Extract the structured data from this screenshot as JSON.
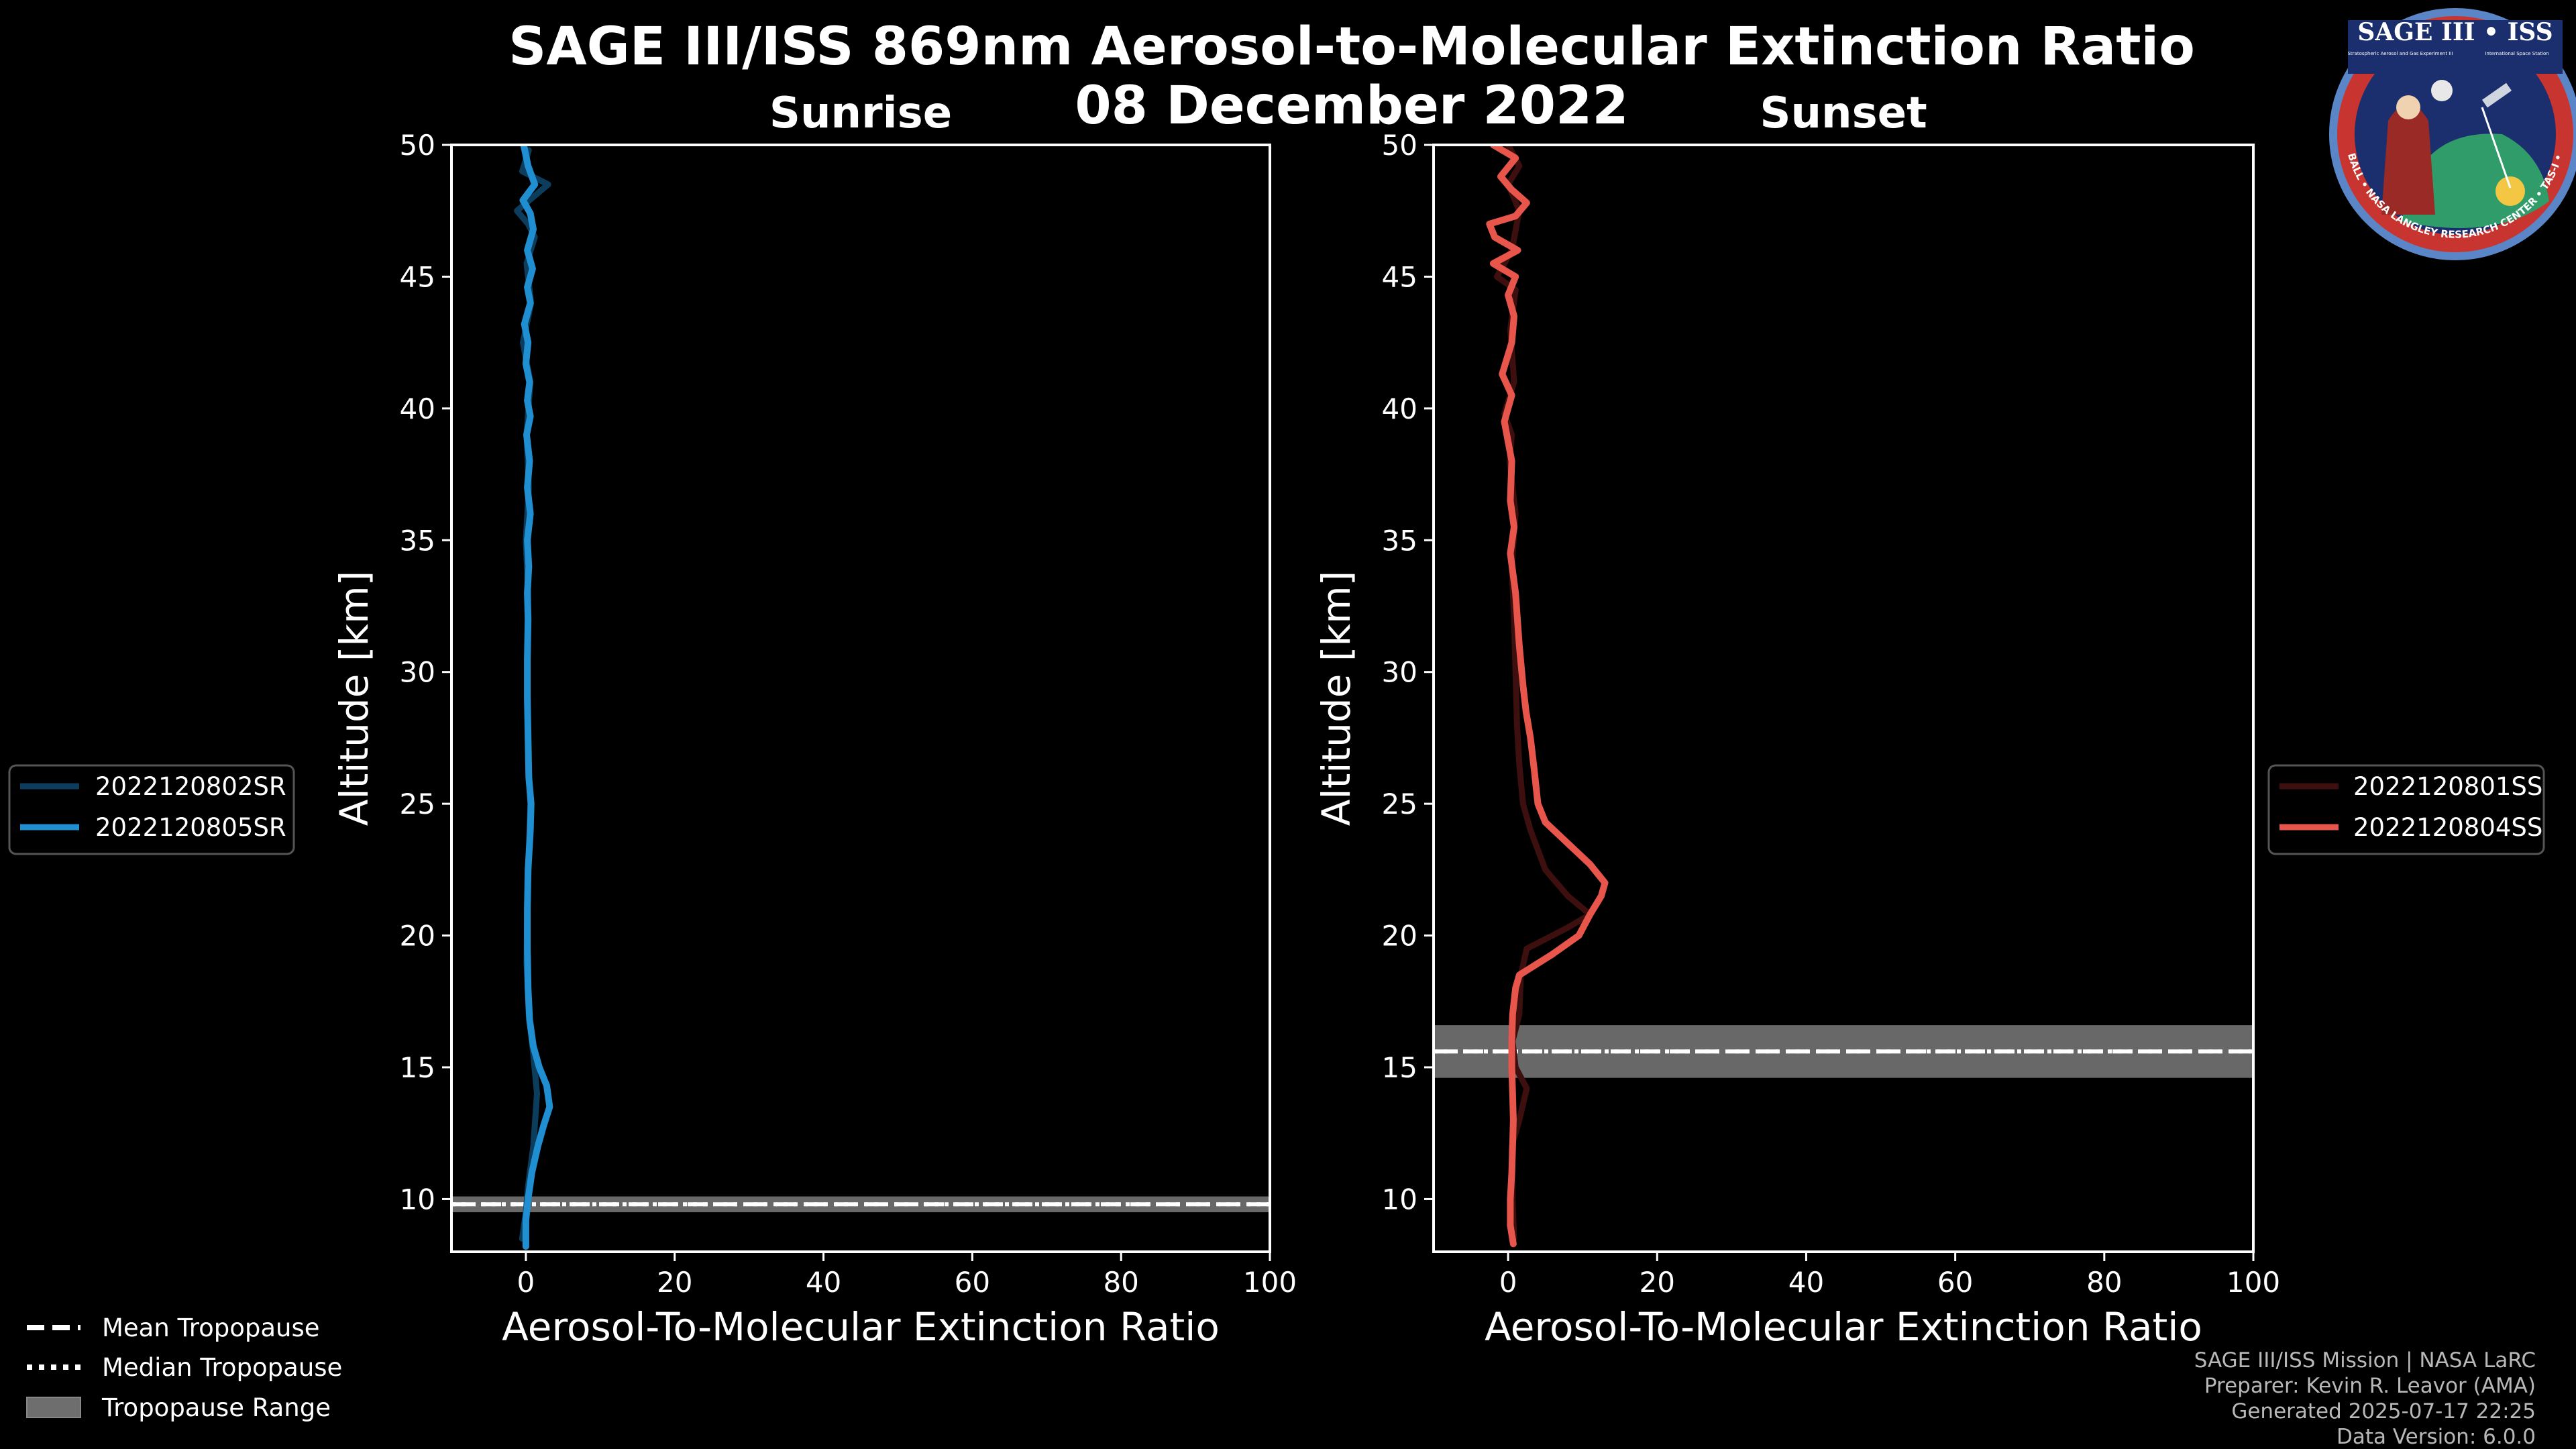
{
  "figure": {
    "title_line1": "SAGE III/ISS 869nm Aerosol-to-Molecular Extinction Ratio",
    "title_line2": "08 December 2022",
    "credits": [
      "SAGE III/ISS Mission | NASA LaRC",
      "Preparer: Kevin R. Leavor (AMA)",
      "Generated 2025-07-17 22:25",
      "Data Version: 6.0.0"
    ],
    "logo": {
      "title": "SAGE III • ISS",
      "sub_left": "Stratospheric Aerosol and Gas Experiment III",
      "sub_right": "International Space Station",
      "ring": "BALL • NASA LANGLEY RESEARCH CENTER • TAS-I • ESA"
    },
    "tropopause_legend": [
      {
        "label": "Mean Tropopause",
        "style": "dashed"
      },
      {
        "label": "Median Tropopause",
        "style": "dotted"
      },
      {
        "label": "Tropopause Range",
        "style": "band"
      }
    ],
    "colors": {
      "background": "#000000",
      "sunrise_faint": "#0d3d5c",
      "sunrise": "#1f8fd1",
      "sunset_faint": "#3d0f0f",
      "sunset": "#e8564b",
      "band": "#6e6e6e"
    }
  },
  "chart_data": [
    {
      "type": "line",
      "subtitle": "Sunrise",
      "xlabel": "Aerosol-To-Molecular Extinction Ratio",
      "ylabel": "Altitude [km]",
      "xlim": [
        -10,
        100
      ],
      "ylim": [
        8,
        50
      ],
      "xticks": [
        0,
        20,
        40,
        60,
        80,
        100
      ],
      "yticks": [
        10,
        15,
        20,
        25,
        30,
        35,
        40,
        45,
        50
      ],
      "tropopause": {
        "mean": 9.8,
        "median": 9.8,
        "range": [
          9.5,
          10.1
        ]
      },
      "series": [
        {
          "name": "2022120802SR",
          "faint": true,
          "points": [
            [
              -0.5,
              8.5
            ],
            [
              0,
              9.5
            ],
            [
              0.3,
              10.5
            ],
            [
              1,
              12
            ],
            [
              1.5,
              14
            ],
            [
              1,
              15.5
            ],
            [
              0.4,
              17
            ],
            [
              0.1,
              19
            ],
            [
              0.2,
              21
            ],
            [
              0.4,
              23
            ],
            [
              0.6,
              25
            ],
            [
              0.3,
              27
            ],
            [
              0.2,
              30
            ],
            [
              0.3,
              33
            ],
            [
              0,
              35
            ],
            [
              0.4,
              37
            ],
            [
              0.1,
              39
            ],
            [
              0.6,
              41
            ],
            [
              -0.4,
              42.5
            ],
            [
              0.7,
              44
            ],
            [
              0.1,
              45.5
            ],
            [
              1.2,
              46.5
            ],
            [
              0.3,
              47
            ],
            [
              -1.2,
              47.5
            ],
            [
              3,
              48.5
            ],
            [
              -0.5,
              49
            ],
            [
              0.4,
              49.8
            ]
          ]
        },
        {
          "name": "2022120805SR",
          "faint": false,
          "points": [
            [
              0,
              8.2
            ],
            [
              0,
              9.2
            ],
            [
              0.3,
              10
            ],
            [
              0.8,
              11
            ],
            [
              1.6,
              12
            ],
            [
              2.4,
              12.8
            ],
            [
              3.2,
              13.5
            ],
            [
              2.8,
              14.3
            ],
            [
              1.8,
              15
            ],
            [
              1,
              15.8
            ],
            [
              0.5,
              16.8
            ],
            [
              0.3,
              18
            ],
            [
              0.2,
              19.5
            ],
            [
              0.2,
              21
            ],
            [
              0.3,
              22.5
            ],
            [
              0.6,
              24
            ],
            [
              0.7,
              25
            ],
            [
              0.4,
              26
            ],
            [
              0.3,
              27.5
            ],
            [
              0.2,
              29
            ],
            [
              0.2,
              30.5
            ],
            [
              0.3,
              32
            ],
            [
              0.2,
              33
            ],
            [
              0.4,
              34
            ],
            [
              0.2,
              35
            ],
            [
              0.6,
              36
            ],
            [
              0.2,
              37
            ],
            [
              0.5,
              38
            ],
            [
              0.1,
              39
            ],
            [
              0.6,
              39.7
            ],
            [
              0.2,
              40.3
            ],
            [
              0.5,
              41
            ],
            [
              0,
              41.7
            ],
            [
              0.3,
              42.5
            ],
            [
              -0.2,
              43.2
            ],
            [
              0.6,
              44
            ],
            [
              0.2,
              44.6
            ],
            [
              0.9,
              45.3
            ],
            [
              0.2,
              46
            ],
            [
              1,
              46.8
            ],
            [
              0.6,
              47.4
            ],
            [
              -0.4,
              47.9
            ],
            [
              1.2,
              48.5
            ],
            [
              0.3,
              49.2
            ],
            [
              -0.3,
              50
            ]
          ]
        }
      ]
    },
    {
      "type": "line",
      "subtitle": "Sunset",
      "xlabel": "Aerosol-To-Molecular Extinction Ratio",
      "ylabel": "Altitude [km]",
      "xlim": [
        -10,
        100
      ],
      "ylim": [
        8,
        50
      ],
      "xticks": [
        0,
        20,
        40,
        60,
        80,
        100
      ],
      "yticks": [
        10,
        15,
        20,
        25,
        30,
        35,
        40,
        45,
        50
      ],
      "tropopause": {
        "mean": 15.6,
        "median": 15.6,
        "range": [
          14.6,
          16.6
        ]
      },
      "series": [
        {
          "name": "2022120801SS",
          "faint": true,
          "points": [
            [
              0.8,
              8.5
            ],
            [
              0.6,
              10
            ],
            [
              0.5,
              12
            ],
            [
              1.5,
              13
            ],
            [
              2.5,
              14.2
            ],
            [
              1,
              15
            ],
            [
              0.6,
              16
            ],
            [
              1.5,
              17
            ],
            [
              1.7,
              18.5
            ],
            [
              2.5,
              19.5
            ],
            [
              8,
              20.3
            ],
            [
              11,
              20.8
            ],
            [
              8,
              21.5
            ],
            [
              5,
              22.5
            ],
            [
              3,
              24
            ],
            [
              2,
              25
            ],
            [
              1.5,
              26.5
            ],
            [
              1.2,
              28
            ],
            [
              1,
              30
            ],
            [
              0.8,
              32
            ],
            [
              0.5,
              34
            ],
            [
              1,
              36
            ],
            [
              0.2,
              38
            ],
            [
              0.5,
              39
            ],
            [
              -0.5,
              39.8
            ],
            [
              0.8,
              41
            ],
            [
              0.3,
              43
            ],
            [
              1,
              44.5
            ],
            [
              -1.5,
              45
            ],
            [
              0.5,
              46
            ],
            [
              1.5,
              47.5
            ],
            [
              0,
              48.5
            ],
            [
              1.5,
              49.2
            ],
            [
              0,
              50
            ]
          ]
        },
        {
          "name": "2022120804SS",
          "faint": false,
          "points": [
            [
              0.7,
              8.3
            ],
            [
              0.3,
              9
            ],
            [
              0.3,
              10
            ],
            [
              0.5,
              11
            ],
            [
              0.6,
              12
            ],
            [
              0.7,
              13
            ],
            [
              0.6,
              14
            ],
            [
              0.5,
              15
            ],
            [
              0.5,
              16
            ],
            [
              0.6,
              17
            ],
            [
              1,
              18
            ],
            [
              1.5,
              18.5
            ],
            [
              6,
              19.3
            ],
            [
              9.5,
              20
            ],
            [
              11,
              20.8
            ],
            [
              12.5,
              21.5
            ],
            [
              13,
              22
            ],
            [
              11,
              22.7
            ],
            [
              8,
              23.5
            ],
            [
              5,
              24.3
            ],
            [
              4,
              25
            ],
            [
              3.5,
              26.3
            ],
            [
              3,
              27.5
            ],
            [
              2.4,
              28.5
            ],
            [
              2,
              29.5
            ],
            [
              1.5,
              31
            ],
            [
              1,
              33
            ],
            [
              0.3,
              34.5
            ],
            [
              0.8,
              35.5
            ],
            [
              0.3,
              36.5
            ],
            [
              0.5,
              38
            ],
            [
              -0.5,
              39.5
            ],
            [
              0.5,
              40.5
            ],
            [
              -0.8,
              41.3
            ],
            [
              0.5,
              42.5
            ],
            [
              0.8,
              43.5
            ],
            [
              0,
              44.3
            ],
            [
              1,
              45
            ],
            [
              -2,
              45.5
            ],
            [
              1.3,
              46
            ],
            [
              -1.8,
              46.5
            ],
            [
              -2.5,
              47
            ],
            [
              1,
              47.3
            ],
            [
              2.5,
              47.8
            ],
            [
              0.5,
              48.3
            ],
            [
              -1,
              48.8
            ],
            [
              1,
              49.5
            ],
            [
              -2,
              50
            ]
          ]
        }
      ]
    }
  ]
}
